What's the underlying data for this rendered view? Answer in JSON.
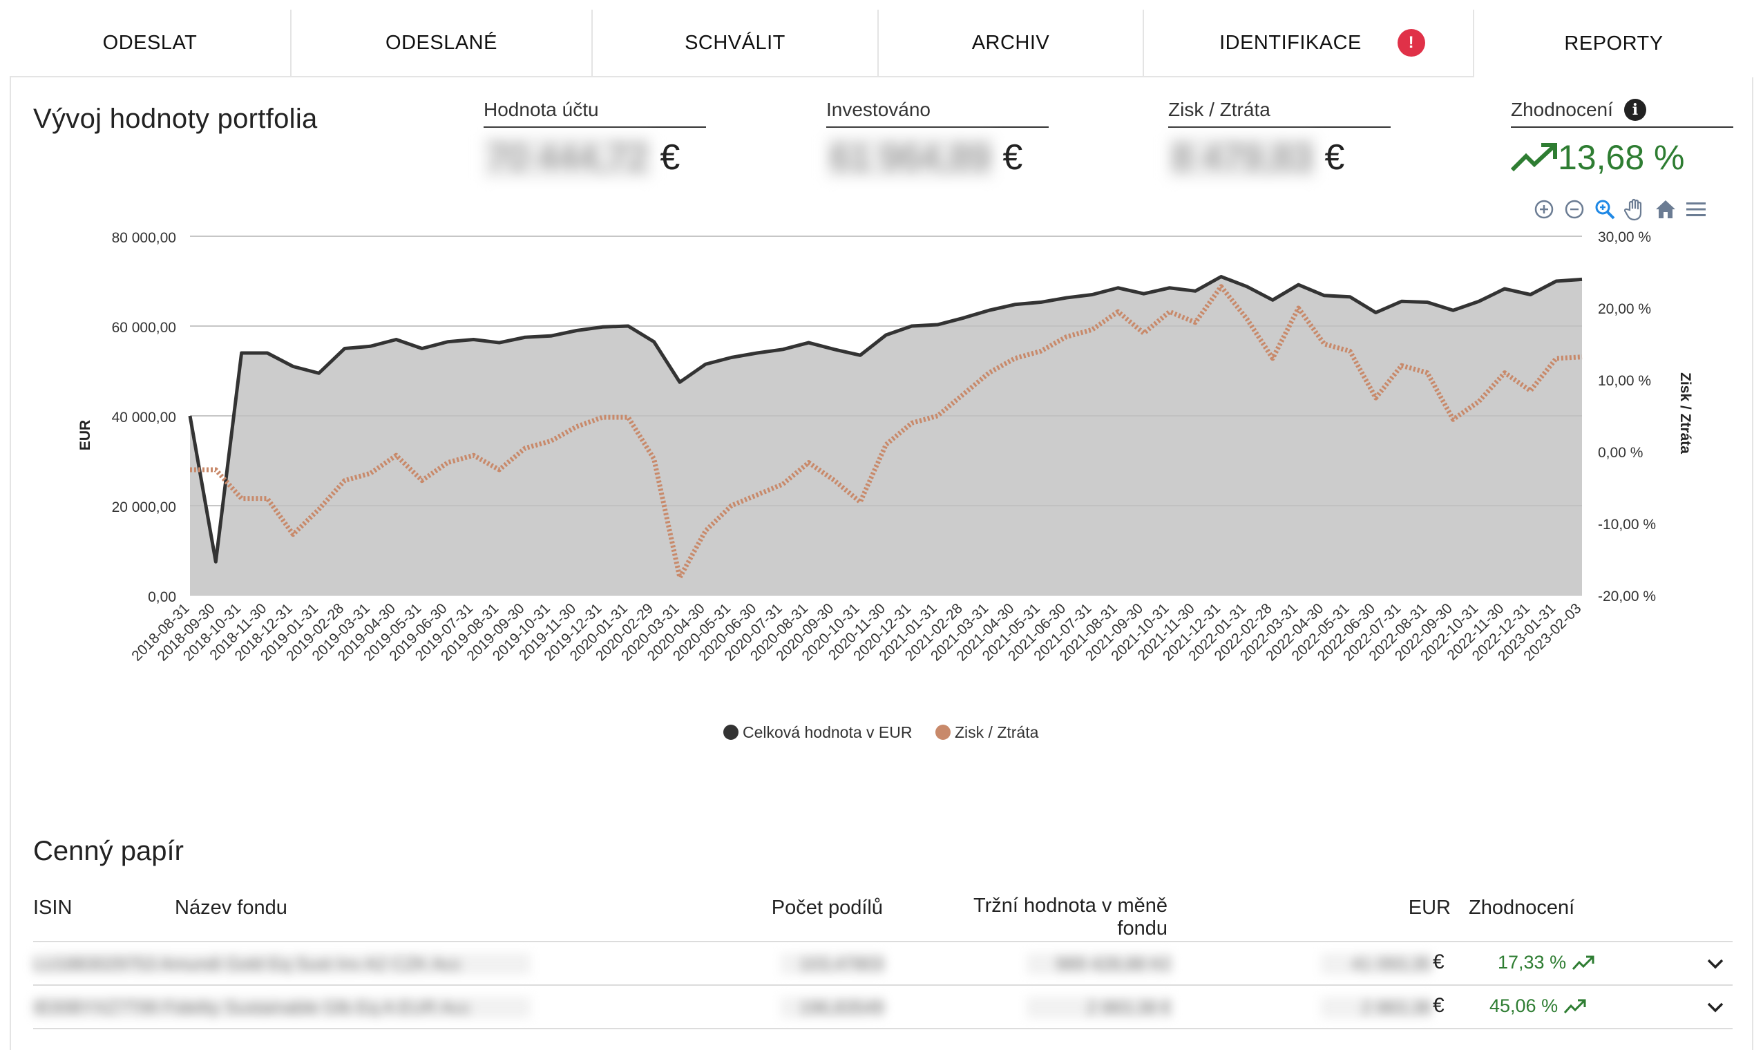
{
  "tabs": [
    {
      "label": "ODESLAT"
    },
    {
      "label": "ODESLANÉ"
    },
    {
      "label": "SCHVÁLIT"
    },
    {
      "label": "ARCHIV"
    },
    {
      "label": "IDENTIFIKACE",
      "badge": "!"
    },
    {
      "label": "REPORTY"
    }
  ],
  "header": {
    "title": "Vývoj hodnoty portfolia",
    "kpis": [
      {
        "label": "Hodnota účtu",
        "value": "70 444,72",
        "currency": "€"
      },
      {
        "label": "Investováno",
        "value": "61 964,89",
        "currency": "€"
      },
      {
        "label": "Zisk / Ztráta",
        "value": "8 479,83",
        "currency": "€"
      },
      {
        "label": "Zhodnocení",
        "info": "i",
        "value": "13,68 %"
      }
    ]
  },
  "toolbar": {
    "icons": [
      "zoom-in-icon",
      "zoom-out-icon",
      "zoom-selection-icon",
      "pan-hand-icon",
      "home-icon",
      "menu-icon"
    ]
  },
  "chart_data": {
    "type": "area",
    "xlabel": "",
    "ylabel_left": "EUR",
    "ylabel_right": "Zisk / Ztráta",
    "ylim_left": [
      0,
      80000
    ],
    "ylim_right": [
      -20,
      30
    ],
    "yticks_left": [
      "0,00",
      "20 000,00",
      "40 000,00",
      "60 000,00",
      "80 000,00"
    ],
    "yticks_right": [
      "-20,00 %",
      "-10,00 %",
      "0,00 %",
      "10,00 %",
      "20,00 %",
      "30,00 %"
    ],
    "grid": true,
    "legend_position": "bottom",
    "x": [
      "2018-08-31",
      "2018-09-30",
      "2018-10-31",
      "2018-11-30",
      "2018-12-31",
      "2019-01-31",
      "2019-02-28",
      "2019-03-31",
      "2019-04-30",
      "2019-05-31",
      "2019-06-30",
      "2019-07-31",
      "2019-08-31",
      "2019-09-30",
      "2019-10-31",
      "2019-11-30",
      "2019-12-31",
      "2020-01-31",
      "2020-02-29",
      "2020-03-31",
      "2020-04-30",
      "2020-05-31",
      "2020-06-30",
      "2020-07-31",
      "2020-08-31",
      "2020-09-30",
      "2020-10-31",
      "2020-11-30",
      "2020-12-31",
      "2021-01-31",
      "2021-02-28",
      "2021-03-31",
      "2021-04-30",
      "2021-05-31",
      "2021-06-30",
      "2021-07-31",
      "2021-08-31",
      "2021-09-30",
      "2021-10-31",
      "2021-11-30",
      "2021-12-31",
      "2022-01-31",
      "2022-02-28",
      "2022-03-31",
      "2022-04-30",
      "2022-05-31",
      "2022-06-30",
      "2022-07-31",
      "2022-08-31",
      "2022-09-30",
      "2022-10-31",
      "2022-11-30",
      "2022-12-31",
      "2023-01-31",
      "2023-02-03"
    ],
    "series": [
      {
        "name": "Celková hodnota v EUR",
        "color": "#333333",
        "fill": "#cccccc",
        "axis": "left",
        "values": [
          40000,
          7500,
          54000,
          54000,
          51000,
          49500,
          55000,
          55500,
          57000,
          55000,
          56500,
          57000,
          56300,
          57500,
          57800,
          59000,
          59800,
          60000,
          56500,
          47500,
          51500,
          53000,
          54000,
          54800,
          56300,
          54800,
          53500,
          58000,
          60000,
          60300,
          61800,
          63500,
          64800,
          65300,
          66300,
          67000,
          68500,
          67200,
          68500,
          67800,
          71000,
          68800,
          65800,
          69200,
          66800,
          66500,
          63000,
          65500,
          65300,
          63500,
          65500,
          68300,
          67000,
          70000,
          70400
        ]
      },
      {
        "name": "Zisk / Ztráta",
        "color": "#c8896a",
        "axis": "right",
        "style": "dotted",
        "values": [
          -2.5,
          -2.5,
          -6.5,
          -6.5,
          -11.5,
          -8,
          -4,
          -3,
          -0.5,
          -4,
          -1.5,
          -0.5,
          -2.5,
          0.5,
          1.5,
          3.5,
          4.8,
          4.8,
          -1,
          -17.5,
          -11,
          -7.5,
          -6,
          -4.5,
          -1.5,
          -4,
          -7,
          1,
          4,
          5,
          8,
          11,
          13,
          14,
          16,
          17,
          19.5,
          16.5,
          19.5,
          18,
          23,
          18.5,
          13,
          20,
          15,
          14,
          7.5,
          12,
          11,
          4.5,
          7,
          11,
          8.5,
          13,
          13.2
        ]
      }
    ]
  },
  "legend": [
    {
      "label": "Celková hodnota v EUR",
      "color": "#333333"
    },
    {
      "label": "Zisk / Ztráta",
      "color": "#c8896a"
    }
  ],
  "section": {
    "title": "Cenný papír",
    "columns": [
      "ISIN",
      "Název fondu",
      "Počet podílů",
      "Tržní hodnota v měně fondu",
      "EUR",
      "Zhodnocení"
    ],
    "rows": [
      {
        "isin_name": "LU1883029753 Amundi Gold Eq Sust Inv A2 CZK Acc",
        "shares": "103,47803",
        "market_value": "989 428,88 Kč",
        "eur": "41 093,35",
        "currency": "€",
        "gain": "17,33 %"
      },
      {
        "isin_name": "IE00BYXZ7T99 Fidelity Sustainable Glb Eq A EUR Acc",
        "shares": "196,83549",
        "market_value": "2 883,38 €",
        "eur": "2 883,38",
        "currency": "€",
        "gain": "45,06 %"
      }
    ]
  }
}
